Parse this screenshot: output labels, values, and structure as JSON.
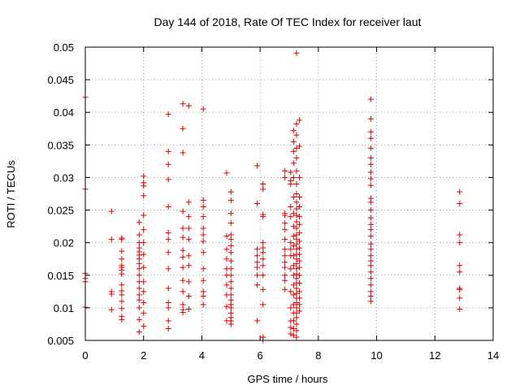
{
  "chart_data": {
    "type": "scatter",
    "title": "Day 144 of 2018, Rate Of TEC Index for receiver laut",
    "xlabel": "GPS time / hours",
    "ylabel": "ROTI / TECUs",
    "xlim": [
      0,
      14
    ],
    "ylim": [
      0.005,
      0.05
    ],
    "xticks": [
      0,
      2,
      4,
      6,
      8,
      10,
      12,
      14
    ],
    "yticks": [
      0.005,
      0.01,
      0.015,
      0.02,
      0.025,
      0.03,
      0.035,
      0.04,
      0.045,
      0.05
    ],
    "xtick_labels": [
      "0",
      "2",
      "4",
      "6",
      "8",
      "10",
      "12",
      "14"
    ],
    "ytick_labels": [
      "0.005",
      "0.01",
      "0.015",
      "0.02",
      "0.025",
      "0.03",
      "0.035",
      "0.04",
      "0.045",
      "0.05"
    ],
    "grid": true,
    "marker": "+",
    "color": "#dd0000",
    "series": [
      {
        "name": "ROTI",
        "points": [
          [
            0.0,
            0.0423
          ],
          [
            0.0,
            0.0282
          ],
          [
            0.0,
            0.0153
          ],
          [
            0.0,
            0.0145
          ],
          [
            0.0,
            0.014
          ],
          [
            0.0,
            0.0101
          ],
          [
            0.9,
            0.0248
          ],
          [
            0.9,
            0.0205
          ],
          [
            0.9,
            0.0125
          ],
          [
            0.9,
            0.0121
          ],
          [
            0.9,
            0.0097
          ],
          [
            1.25,
            0.0207
          ],
          [
            1.25,
            0.0205
          ],
          [
            1.25,
            0.0187
          ],
          [
            1.25,
            0.0175
          ],
          [
            1.25,
            0.0165
          ],
          [
            1.25,
            0.0162
          ],
          [
            1.25,
            0.0158
          ],
          [
            1.25,
            0.0152
          ],
          [
            1.25,
            0.0135
          ],
          [
            1.25,
            0.0126
          ],
          [
            1.25,
            0.012
          ],
          [
            1.25,
            0.011
          ],
          [
            1.25,
            0.0099
          ],
          [
            1.25,
            0.0087
          ],
          [
            1.25,
            0.0082
          ],
          [
            1.85,
            0.0231
          ],
          [
            1.85,
            0.0212
          ],
          [
            1.85,
            0.02
          ],
          [
            1.85,
            0.0192
          ],
          [
            1.85,
            0.0186
          ],
          [
            1.85,
            0.0181
          ],
          [
            1.85,
            0.0175
          ],
          [
            1.85,
            0.0168
          ],
          [
            1.85,
            0.016
          ],
          [
            1.85,
            0.015
          ],
          [
            1.85,
            0.014
          ],
          [
            1.85,
            0.013
          ],
          [
            1.85,
            0.012
          ],
          [
            1.85,
            0.0112
          ],
          [
            1.85,
            0.01
          ],
          [
            1.85,
            0.0082
          ],
          [
            1.85,
            0.0063
          ],
          [
            2.0,
            0.0302
          ],
          [
            2.0,
            0.0292
          ],
          [
            2.0,
            0.0287
          ],
          [
            2.0,
            0.0272
          ],
          [
            2.0,
            0.0242
          ],
          [
            2.0,
            0.022
          ],
          [
            2.0,
            0.02
          ],
          [
            2.0,
            0.0182
          ],
          [
            2.0,
            0.0162
          ],
          [
            2.0,
            0.014
          ],
          [
            2.0,
            0.0125
          ],
          [
            2.0,
            0.0108
          ],
          [
            2.0,
            0.0092
          ],
          [
            2.0,
            0.0072
          ],
          [
            2.85,
            0.0397
          ],
          [
            2.85,
            0.034
          ],
          [
            2.85,
            0.032
          ],
          [
            2.85,
            0.0297
          ],
          [
            2.85,
            0.0255
          ],
          [
            2.85,
            0.0215
          ],
          [
            2.85,
            0.0205
          ],
          [
            2.85,
            0.0185
          ],
          [
            2.85,
            0.016
          ],
          [
            2.85,
            0.013
          ],
          [
            2.85,
            0.0108
          ],
          [
            2.85,
            0.01
          ],
          [
            2.85,
            0.008
          ],
          [
            2.85,
            0.0068
          ],
          [
            3.35,
            0.0413
          ],
          [
            3.35,
            0.0375
          ],
          [
            3.35,
            0.0338
          ],
          [
            3.35,
            0.0248
          ],
          [
            3.35,
            0.0222
          ],
          [
            3.35,
            0.0208
          ],
          [
            3.35,
            0.0188
          ],
          [
            3.35,
            0.0178
          ],
          [
            3.35,
            0.0162
          ],
          [
            3.35,
            0.0142
          ],
          [
            3.35,
            0.0125
          ],
          [
            3.35,
            0.0105
          ],
          [
            3.35,
            0.0097
          ],
          [
            3.35,
            0.0093
          ],
          [
            3.55,
            0.041
          ],
          [
            3.55,
            0.0262
          ],
          [
            3.55,
            0.024
          ],
          [
            3.55,
            0.0222
          ],
          [
            3.55,
            0.0205
          ],
          [
            3.55,
            0.018
          ],
          [
            3.55,
            0.0165
          ],
          [
            3.55,
            0.014
          ],
          [
            3.55,
            0.0118
          ],
          [
            3.55,
            0.0098
          ],
          [
            4.05,
            0.0405
          ],
          [
            4.05,
            0.0265
          ],
          [
            4.05,
            0.0255
          ],
          [
            4.05,
            0.024
          ],
          [
            4.05,
            0.0222
          ],
          [
            4.05,
            0.0212
          ],
          [
            4.05,
            0.0202
          ],
          [
            4.05,
            0.0185
          ],
          [
            4.05,
            0.016
          ],
          [
            4.05,
            0.0142
          ],
          [
            4.05,
            0.0125
          ],
          [
            4.05,
            0.0118
          ],
          [
            4.05,
            0.0105
          ],
          [
            4.85,
            0.0307
          ],
          [
            4.85,
            0.021
          ],
          [
            4.85,
            0.019
          ],
          [
            4.85,
            0.0175
          ],
          [
            4.85,
            0.016
          ],
          [
            4.85,
            0.015
          ],
          [
            4.85,
            0.0135
          ],
          [
            4.85,
            0.012
          ],
          [
            4.85,
            0.0102
          ],
          [
            4.85,
            0.008
          ],
          [
            5.0,
            0.0278
          ],
          [
            5.0,
            0.0265
          ],
          [
            5.0,
            0.0245
          ],
          [
            5.0,
            0.023
          ],
          [
            5.0,
            0.0212
          ],
          [
            5.0,
            0.0205
          ],
          [
            5.0,
            0.0195
          ],
          [
            5.0,
            0.0185
          ],
          [
            5.0,
            0.0172
          ],
          [
            5.0,
            0.016
          ],
          [
            5.0,
            0.015
          ],
          [
            5.0,
            0.014
          ],
          [
            5.0,
            0.013
          ],
          [
            5.0,
            0.012
          ],
          [
            5.0,
            0.0112
          ],
          [
            5.0,
            0.0105
          ],
          [
            5.0,
            0.01
          ],
          [
            5.0,
            0.0092
          ],
          [
            5.0,
            0.0085
          ],
          [
            5.0,
            0.008
          ],
          [
            5.0,
            0.0075
          ],
          [
            5.9,
            0.0318
          ],
          [
            5.9,
            0.026
          ],
          [
            5.9,
            0.019
          ],
          [
            5.9,
            0.018
          ],
          [
            5.9,
            0.017
          ],
          [
            5.9,
            0.0162
          ],
          [
            5.9,
            0.015
          ],
          [
            5.9,
            0.0135
          ],
          [
            5.9,
            0.008
          ],
          [
            6.1,
            0.029
          ],
          [
            6.1,
            0.0282
          ],
          [
            6.1,
            0.0243
          ],
          [
            6.1,
            0.024
          ],
          [
            6.1,
            0.02
          ],
          [
            6.1,
            0.0192
          ],
          [
            6.1,
            0.0185
          ],
          [
            6.1,
            0.0175
          ],
          [
            6.1,
            0.0165
          ],
          [
            6.1,
            0.015
          ],
          [
            6.1,
            0.0128
          ],
          [
            6.1,
            0.0105
          ],
          [
            6.1,
            0.0055
          ],
          [
            6.1,
            0.005
          ],
          [
            6.85,
            0.031
          ],
          [
            6.85,
            0.03
          ],
          [
            6.85,
            0.0245
          ],
          [
            6.85,
            0.0242
          ],
          [
            6.85,
            0.023
          ],
          [
            6.85,
            0.022
          ],
          [
            6.85,
            0.0205
          ],
          [
            6.85,
            0.019
          ],
          [
            6.85,
            0.018
          ],
          [
            6.85,
            0.017
          ],
          [
            6.85,
            0.0162
          ],
          [
            6.85,
            0.015
          ],
          [
            6.85,
            0.0142
          ],
          [
            6.85,
            0.0128
          ],
          [
            7.05,
            0.0308
          ],
          [
            7.05,
            0.0295
          ],
          [
            7.05,
            0.029
          ],
          [
            7.05,
            0.0255
          ],
          [
            7.05,
            0.024
          ],
          [
            7.05,
            0.02
          ],
          [
            7.05,
            0.019
          ],
          [
            7.05,
            0.018
          ],
          [
            7.05,
            0.016
          ],
          [
            7.05,
            0.0125
          ],
          [
            7.05,
            0.01
          ],
          [
            7.05,
            0.008
          ],
          [
            7.05,
            0.007
          ],
          [
            7.05,
            0.006
          ],
          [
            7.15,
            0.0372
          ],
          [
            7.15,
            0.0355
          ],
          [
            7.15,
            0.034
          ],
          [
            7.15,
            0.0322
          ],
          [
            7.15,
            0.03
          ],
          [
            7.15,
            0.027
          ],
          [
            7.15,
            0.0245
          ],
          [
            7.15,
            0.0225
          ],
          [
            7.15,
            0.021
          ],
          [
            7.15,
            0.0195
          ],
          [
            7.15,
            0.018
          ],
          [
            7.15,
            0.0165
          ],
          [
            7.15,
            0.015
          ],
          [
            7.15,
            0.0135
          ],
          [
            7.15,
            0.012
          ],
          [
            7.15,
            0.0105
          ],
          [
            7.15,
            0.0092
          ],
          [
            7.15,
            0.008
          ],
          [
            7.15,
            0.0068
          ],
          [
            7.15,
            0.0058
          ],
          [
            7.25,
            0.0491
          ],
          [
            7.25,
            0.0382
          ],
          [
            7.25,
            0.0365
          ],
          [
            7.25,
            0.0345
          ],
          [
            7.25,
            0.033
          ],
          [
            7.25,
            0.031
          ],
          [
            7.25,
            0.029
          ],
          [
            7.25,
            0.0275
          ],
          [
            7.25,
            0.0262
          ],
          [
            7.25,
            0.0252
          ],
          [
            7.25,
            0.0242
          ],
          [
            7.25,
            0.0232
          ],
          [
            7.25,
            0.0222
          ],
          [
            7.25,
            0.0212
          ],
          [
            7.25,
            0.0205
          ],
          [
            7.25,
            0.0198
          ],
          [
            7.25,
            0.019
          ],
          [
            7.25,
            0.0182
          ],
          [
            7.25,
            0.0175
          ],
          [
            7.25,
            0.0168
          ],
          [
            7.25,
            0.016
          ],
          [
            7.25,
            0.0152
          ],
          [
            7.25,
            0.0145
          ],
          [
            7.25,
            0.0138
          ],
          [
            7.25,
            0.013
          ],
          [
            7.25,
            0.0122
          ],
          [
            7.25,
            0.0115
          ],
          [
            7.25,
            0.0108
          ],
          [
            7.25,
            0.01
          ],
          [
            7.25,
            0.0092
          ],
          [
            7.25,
            0.0085
          ],
          [
            7.25,
            0.0075
          ],
          [
            7.25,
            0.0065
          ],
          [
            7.25,
            0.0055
          ],
          [
            7.35,
            0.0388
          ],
          [
            7.35,
            0.0348
          ],
          [
            7.35,
            0.03
          ],
          [
            7.35,
            0.027
          ],
          [
            7.35,
            0.0255
          ],
          [
            7.35,
            0.024
          ],
          [
            7.35,
            0.0228
          ],
          [
            7.35,
            0.0215
          ],
          [
            7.35,
            0.0202
          ],
          [
            7.35,
            0.0192
          ],
          [
            7.35,
            0.0182
          ],
          [
            7.35,
            0.0172
          ],
          [
            7.35,
            0.0162
          ],
          [
            7.35,
            0.015
          ],
          [
            7.35,
            0.0138
          ],
          [
            7.35,
            0.0125
          ],
          [
            7.35,
            0.0115
          ],
          [
            7.35,
            0.0105
          ],
          [
            7.35,
            0.0095
          ],
          [
            9.8,
            0.042
          ],
          [
            9.8,
            0.039
          ],
          [
            9.8,
            0.037
          ],
          [
            9.8,
            0.036
          ],
          [
            9.8,
            0.0345
          ],
          [
            9.8,
            0.033
          ],
          [
            9.8,
            0.032
          ],
          [
            9.8,
            0.0308
          ],
          [
            9.8,
            0.0298
          ],
          [
            9.8,
            0.0288
          ],
          [
            9.8,
            0.0268
          ],
          [
            9.8,
            0.0262
          ],
          [
            9.8,
            0.025
          ],
          [
            9.8,
            0.0238
          ],
          [
            9.8,
            0.0228
          ],
          [
            9.8,
            0.022
          ],
          [
            9.8,
            0.021
          ],
          [
            9.8,
            0.0198
          ],
          [
            9.8,
            0.019
          ],
          [
            9.8,
            0.018
          ],
          [
            9.8,
            0.0172
          ],
          [
            9.8,
            0.0165
          ],
          [
            9.8,
            0.0155
          ],
          [
            9.8,
            0.0145
          ],
          [
            9.8,
            0.0135
          ],
          [
            9.8,
            0.0125
          ],
          [
            9.8,
            0.0118
          ],
          [
            9.8,
            0.011
          ],
          [
            12.85,
            0.0278
          ],
          [
            12.85,
            0.026
          ],
          [
            12.85,
            0.0212
          ],
          [
            12.85,
            0.02
          ],
          [
            12.85,
            0.0165
          ],
          [
            12.85,
            0.0155
          ],
          [
            12.85,
            0.013
          ],
          [
            12.85,
            0.0128
          ],
          [
            12.85,
            0.0115
          ],
          [
            12.85,
            0.0098
          ]
        ]
      }
    ]
  }
}
